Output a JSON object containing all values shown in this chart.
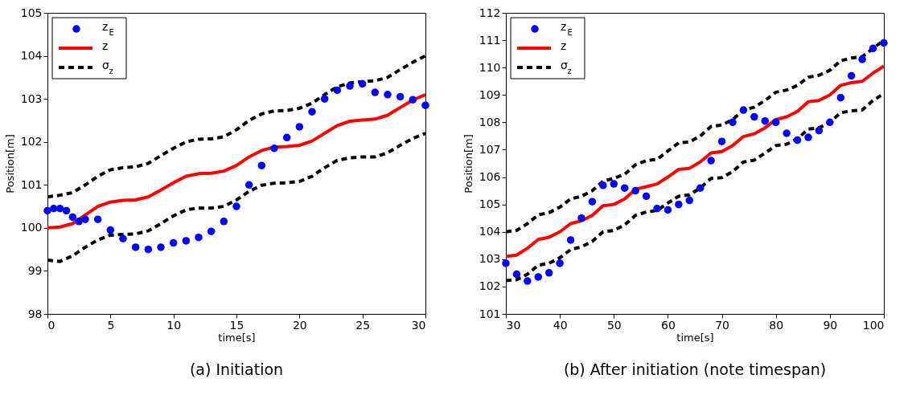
{
  "chart_data": [
    {
      "type": "line",
      "xlabel": "time[s]",
      "ylabel": "Position[m]",
      "xlim": [
        0,
        30
      ],
      "ylim": [
        98,
        105
      ],
      "xticks": [
        0,
        5,
        10,
        15,
        20,
        25,
        30
      ],
      "yticks": [
        98,
        99,
        100,
        101,
        102,
        103,
        104,
        105
      ],
      "legend": "top left",
      "annotations": [
        "(a) Initiation"
      ],
      "series": [
        {
          "name": "z$_{E}$",
          "type": "scatter",
          "marker": "circle",
          "color": "#0000ff",
          "x": [
            0,
            0.5,
            1,
            1.5,
            2,
            2.5,
            3,
            4,
            5,
            6,
            7,
            8,
            9,
            10,
            11,
            12,
            13,
            14,
            15,
            16,
            17,
            18,
            19,
            20,
            21,
            22,
            23,
            24,
            25,
            26,
            27,
            28,
            29,
            30
          ],
          "values": [
            100.4,
            100.45,
            100.45,
            100.4,
            100.25,
            100.15,
            100.2,
            100.2,
            99.95,
            99.75,
            99.55,
            99.5,
            99.55,
            99.65,
            99.7,
            99.78,
            99.92,
            100.15,
            100.5,
            101.0,
            101.45,
            101.85,
            102.1,
            102.35,
            102.7,
            103.0,
            103.2,
            103.3,
            103.35,
            103.15,
            103.1,
            103.05,
            102.98,
            102.85
          ]
        },
        {
          "name": "z",
          "line_style": "solid",
          "color": "#ff0000",
          "x": [
            0,
            1,
            2,
            3,
            4,
            5,
            6,
            7,
            8,
            9,
            10,
            11,
            12,
            13,
            14,
            15,
            16,
            17,
            18,
            19,
            20,
            21,
            22,
            23,
            24,
            25,
            26,
            27,
            28,
            29,
            30
          ],
          "values": [
            100.0,
            100.02,
            100.1,
            100.3,
            100.5,
            100.6,
            100.64,
            100.65,
            100.72,
            100.88,
            101.05,
            101.2,
            101.26,
            101.27,
            101.32,
            101.45,
            101.65,
            101.8,
            101.88,
            101.89,
            101.92,
            102.02,
            102.2,
            102.38,
            102.48,
            102.51,
            102.53,
            102.62,
            102.8,
            102.97,
            103.1
          ]
        },
        {
          "name": "σ$_{z}$",
          "line_style": "dashed",
          "color": "#000000",
          "x": [
            0,
            1,
            2,
            3,
            4,
            5,
            6,
            7,
            8,
            9,
            10,
            11,
            12,
            13,
            14,
            15,
            16,
            17,
            18,
            19,
            20,
            21,
            22,
            23,
            24,
            25,
            26,
            27,
            28,
            29,
            30
          ],
          "values": [
            100.72,
            100.76,
            100.82,
            101.0,
            101.2,
            101.35,
            101.4,
            101.42,
            101.5,
            101.68,
            101.85,
            102.0,
            102.06,
            102.07,
            102.12,
            102.28,
            102.5,
            102.65,
            102.72,
            102.73,
            102.78,
            102.9,
            103.1,
            103.28,
            103.37,
            103.4,
            103.42,
            103.5,
            103.68,
            103.85,
            104.0
          ]
        },
        {
          "line_style": "dashed",
          "color": "#000000",
          "x": [
            0,
            1,
            2,
            3,
            4,
            5,
            6,
            7,
            8,
            9,
            10,
            11,
            12,
            13,
            14,
            15,
            16,
            17,
            18,
            19,
            20,
            21,
            22,
            23,
            24,
            25,
            26,
            27,
            28,
            29,
            30
          ],
          "values": [
            99.25,
            99.22,
            99.35,
            99.55,
            99.72,
            99.83,
            99.85,
            99.86,
            99.93,
            100.1,
            100.28,
            100.42,
            100.46,
            100.46,
            100.5,
            100.65,
            100.85,
            100.99,
            101.04,
            101.05,
            101.08,
            101.2,
            101.4,
            101.57,
            101.63,
            101.65,
            101.65,
            101.75,
            101.92,
            102.08,
            102.2
          ]
        }
      ]
    },
    {
      "type": "line",
      "xlabel": "time[s]",
      "ylabel": "Position[m]",
      "xlim": [
        30,
        100
      ],
      "ylim": [
        101,
        112
      ],
      "xticks": [
        30,
        40,
        50,
        60,
        70,
        80,
        90,
        100
      ],
      "yticks": [
        101,
        102,
        103,
        104,
        105,
        106,
        107,
        108,
        109,
        110,
        111,
        112
      ],
      "legend": "top left",
      "annotations": [
        "(b) After initiation (note timespan)"
      ],
      "series": [
        {
          "name": "z$_{E}$",
          "type": "scatter",
          "marker": "circle",
          "color": "#0000ff",
          "x": [
            30,
            32,
            34,
            36,
            38,
            40,
            42,
            44,
            46,
            48,
            50,
            52,
            54,
            56,
            58,
            60,
            62,
            64,
            66,
            68,
            70,
            72,
            74,
            76,
            78,
            80,
            82,
            84,
            86,
            88,
            90,
            92,
            94,
            96,
            98,
            100
          ],
          "values": [
            102.85,
            102.45,
            102.2,
            102.35,
            102.5,
            102.85,
            103.7,
            104.5,
            105.1,
            105.7,
            105.75,
            105.6,
            105.5,
            105.3,
            104.85,
            104.8,
            105.0,
            105.15,
            105.6,
            106.6,
            107.3,
            108.0,
            108.45,
            108.2,
            108.05,
            108.0,
            107.6,
            107.35,
            107.45,
            107.7,
            108.0,
            108.9,
            109.7,
            110.3,
            110.7,
            110.9
          ]
        },
        {
          "name": "z",
          "line_style": "solid",
          "color": "#ff0000",
          "x": [
            30,
            32,
            34,
            36,
            38,
            40,
            42,
            44,
            46,
            48,
            50,
            52,
            54,
            56,
            58,
            60,
            62,
            64,
            66,
            68,
            70,
            72,
            74,
            76,
            78,
            80,
            82,
            84,
            86,
            88,
            90,
            92,
            94,
            96,
            98,
            100
          ],
          "values": [
            103.1,
            103.15,
            103.4,
            103.72,
            103.8,
            104.0,
            104.3,
            104.4,
            104.6,
            104.95,
            105.0,
            105.2,
            105.55,
            105.65,
            105.75,
            106.0,
            106.28,
            106.32,
            106.55,
            106.88,
            106.93,
            107.15,
            107.48,
            107.58,
            107.8,
            108.1,
            108.2,
            108.4,
            108.75,
            108.8,
            109.0,
            109.35,
            109.45,
            109.5,
            109.8,
            110.05
          ]
        },
        {
          "name": "σ$_{z}$",
          "line_style": "dashed",
          "color": "#000000",
          "x": [
            30,
            32,
            34,
            36,
            38,
            40,
            42,
            44,
            46,
            48,
            50,
            52,
            54,
            56,
            58,
            60,
            62,
            64,
            66,
            68,
            70,
            72,
            74,
            76,
            78,
            80,
            82,
            84,
            86,
            88,
            90,
            92,
            94,
            96,
            98,
            100
          ],
          "values": [
            104.0,
            104.05,
            104.3,
            104.62,
            104.7,
            104.9,
            105.2,
            105.3,
            105.5,
            105.85,
            105.95,
            106.1,
            106.45,
            106.6,
            106.65,
            106.95,
            107.25,
            107.28,
            107.5,
            107.85,
            107.9,
            108.1,
            108.45,
            108.55,
            108.8,
            109.1,
            109.18,
            109.35,
            109.65,
            109.72,
            109.9,
            110.25,
            110.35,
            110.4,
            110.7,
            111.0
          ]
        },
        {
          "line_style": "dashed",
          "color": "#000000",
          "x": [
            30,
            32,
            34,
            36,
            38,
            40,
            42,
            44,
            46,
            48,
            50,
            52,
            54,
            56,
            58,
            60,
            62,
            64,
            66,
            68,
            70,
            72,
            74,
            76,
            78,
            80,
            82,
            84,
            86,
            88,
            90,
            92,
            94,
            96,
            98,
            100
          ],
          "values": [
            102.22,
            102.25,
            102.45,
            102.78,
            102.85,
            103.05,
            103.35,
            103.45,
            103.65,
            104.0,
            104.05,
            104.25,
            104.6,
            104.72,
            104.78,
            105.05,
            105.3,
            105.35,
            105.6,
            105.95,
            105.98,
            106.2,
            106.55,
            106.62,
            106.88,
            107.15,
            107.2,
            107.4,
            107.75,
            107.8,
            108.0,
            108.35,
            108.42,
            108.45,
            108.8,
            109.05
          ]
        }
      ]
    }
  ]
}
